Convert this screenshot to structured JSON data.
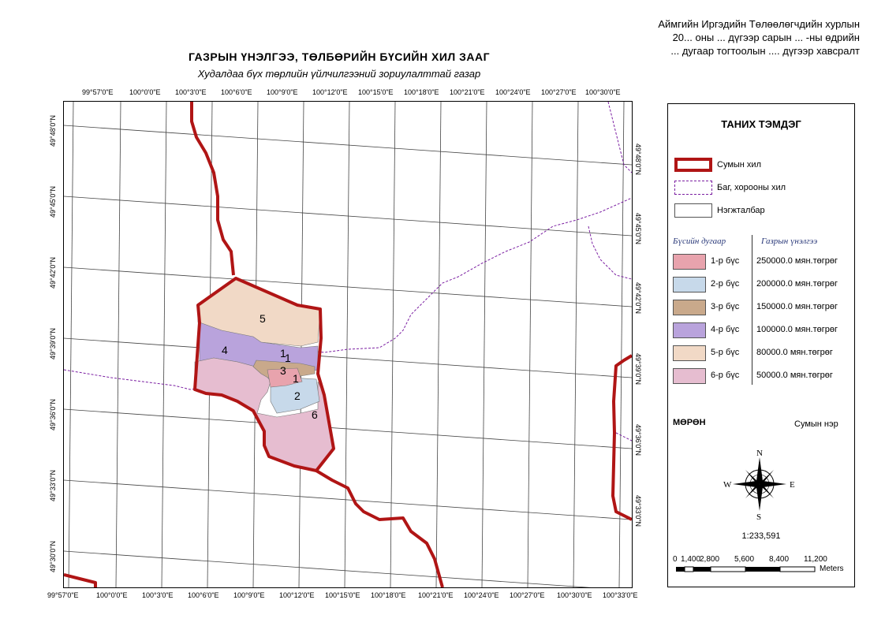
{
  "header_note": [
    "Аймгийн Иргэдийн Төлөөлөгчдийн хурлын",
    "20... оны ...  дүгээр сарын  ... -ны өдрийн",
    "... дугаар тогтоолын  .... дүгээр хавсралт"
  ],
  "map": {
    "title": "ГАЗРЫН ҮНЭЛГЭЭ, ТӨЛБӨРИЙН БҮСИЙН ХИЛ ЗААГ",
    "subtitle": "Худалдаа бүх төрлийн үйлчилгээний зориулалттай газар",
    "top_lon_ticks": [
      "99°57'0\"E",
      "100°0'0\"E",
      "100°3'0\"E",
      "100°6'0\"E",
      "100°9'0\"E",
      "100°12'0\"E",
      "100°15'0\"E",
      "100°18'0\"E",
      "100°21'0\"E",
      "100°24'0\"E",
      "100°27'0\"E",
      "100°30'0\"E"
    ],
    "bottom_lon_ticks": [
      "99°57'0\"E",
      "100°0'0\"E",
      "100°3'0\"E",
      "100°6'0\"E",
      "100°9'0\"E",
      "100°12'0\"E",
      "100°15'0\"E",
      "100°18'0\"E",
      "100°21'0\"E",
      "100°24'0\"E",
      "100°27'0\"E",
      "100°30'0\"E",
      "100°33'0\"E"
    ],
    "left_lat_ticks": [
      "49°48'0\"N",
      "49°45'0\"N",
      "49°42'0\"N",
      "49°39'0\"N",
      "49°36'0\"N",
      "49°33'0\"N",
      "49°30'0\"N"
    ],
    "right_lat_ticks": [
      "49°48'0\"N",
      "49°45'0\"N",
      "49°42'0\"N",
      "49°39'0\"N",
      "49°36'0\"N",
      "49°33'0\"N"
    ],
    "zone_labels": [
      "1",
      "1",
      "1",
      "2",
      "3",
      "4",
      "5",
      "6"
    ],
    "colors": {
      "soum_border": "#b01515",
      "bag_border": "#7b1fa2",
      "grid": "#444444"
    }
  },
  "legend": {
    "title": "ТАНИХ ТЭМДЭГ",
    "soum_border_label": "Сумын хил",
    "bag_border_label": "Баг, хорооны хил",
    "parcel_label": "Нэгжталбар",
    "zone_col_header": "Бүсийн дугаар",
    "value_col_header": "Газрын үнэлгээ",
    "zones": [
      {
        "label": "1-р  бүс",
        "value": "250000.0 мян.төгрөг",
        "color": "#e8a3ad"
      },
      {
        "label": "2-р  бүс",
        "value": "200000.0 мян.төгрөг",
        "color": "#c7d9ea"
      },
      {
        "label": "3-р  бүс",
        "value": "150000.0 мян.төгрөг",
        "color": "#c9a98b"
      },
      {
        "label": "4-р  бүс",
        "value": "100000.0 мян.төгрөг",
        "color": "#b9a3dc"
      },
      {
        "label": "5-р  бүс",
        "value": "80000.0 мян.төгрөг",
        "color": "#f1d9c6"
      },
      {
        "label": "6-р  бүс",
        "value": "50000.0 мян.төгрөг",
        "color": "#e6bdd0"
      }
    ],
    "place_name": "МӨРӨН",
    "place_name_caption": "Сумын нэр",
    "compass": {
      "n": "N",
      "s": "S",
      "e": "E",
      "w": "W"
    },
    "scale_ratio": "1:233,591",
    "scale_ticks": [
      "0",
      "1,400",
      "2,800",
      "5,600",
      "8,400",
      "11,200"
    ],
    "scale_unit": "Meters"
  }
}
